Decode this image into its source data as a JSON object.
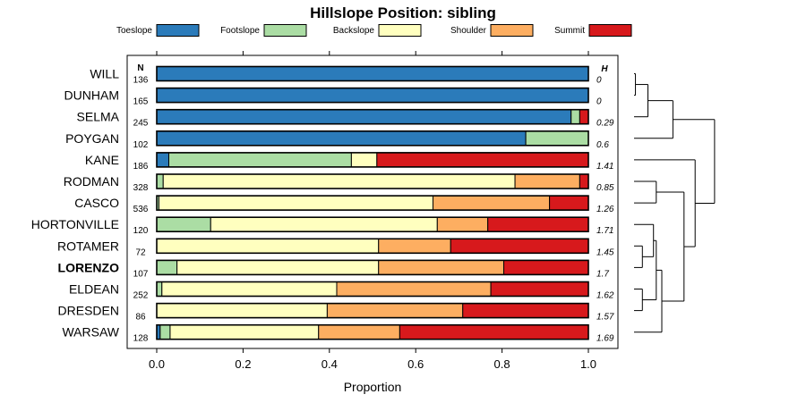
{
  "chart_data": {
    "type": "bar",
    "orientation": "horizontal",
    "stacked": true,
    "title": "Hillslope Position: sibling",
    "xlabel": "Proportion",
    "ylabel": "",
    "xlim": [
      0,
      1
    ],
    "x_ticks": [
      "0.0",
      "0.2",
      "0.4",
      "0.6",
      "0.8",
      "1.0"
    ],
    "x_tick_values": [
      0,
      0.2,
      0.4,
      0.6,
      0.8,
      1.0
    ],
    "n_header": "N",
    "h_header": "H",
    "legend": {
      "placement": "top",
      "entries": [
        {
          "label": "Toeslope",
          "color": "#2b7bba"
        },
        {
          "label": "Footslope",
          "color": "#abdda4"
        },
        {
          "label": "Backslope",
          "color": "#ffffbf"
        },
        {
          "label": "Shoulder",
          "color": "#fdae61"
        },
        {
          "label": "Summit",
          "color": "#d7191c"
        }
      ]
    },
    "rows": [
      {
        "label": "WILL",
        "bold": false,
        "n": "136",
        "h": "0",
        "values": [
          1.0,
          0,
          0,
          0,
          0
        ]
      },
      {
        "label": "DUNHAM",
        "bold": false,
        "n": "165",
        "h": "0",
        "values": [
          1.0,
          0,
          0,
          0,
          0
        ]
      },
      {
        "label": "SELMA",
        "bold": false,
        "n": "245",
        "h": "0.29",
        "values": [
          0.96,
          0.02,
          0,
          0,
          0.02
        ]
      },
      {
        "label": "POYGAN",
        "bold": false,
        "n": "102",
        "h": "0.6",
        "values": [
          0.855,
          0.145,
          0,
          0,
          0
        ]
      },
      {
        "label": "KANE",
        "bold": false,
        "n": "186",
        "h": "1.41",
        "values": [
          0.028,
          0.423,
          0.059,
          0,
          0.49
        ]
      },
      {
        "label": "RODMAN",
        "bold": false,
        "n": "328",
        "h": "0.85",
        "values": [
          0,
          0.015,
          0.815,
          0.15,
          0.02
        ]
      },
      {
        "label": "CASCO",
        "bold": false,
        "n": "536",
        "h": "1.26",
        "values": [
          0,
          0.005,
          0.635,
          0.27,
          0.09
        ]
      },
      {
        "label": "HORTONVILLE",
        "bold": false,
        "n": "120",
        "h": "1.71",
        "values": [
          0,
          0.125,
          0.525,
          0.117,
          0.233
        ]
      },
      {
        "label": "ROTAMER",
        "bold": false,
        "n": "72",
        "h": "1.45",
        "values": [
          0,
          0,
          0.514,
          0.167,
          0.319
        ]
      },
      {
        "label": "LORENZO",
        "bold": true,
        "n": "107",
        "h": "1.7",
        "values": [
          0,
          0.047,
          0.467,
          0.29,
          0.196
        ]
      },
      {
        "label": "ELDEAN",
        "bold": false,
        "n": "252",
        "h": "1.62",
        "values": [
          0,
          0.012,
          0.405,
          0.357,
          0.226
        ]
      },
      {
        "label": "DRESDEN",
        "bold": false,
        "n": "86",
        "h": "1.57",
        "values": [
          0,
          0,
          0.395,
          0.314,
          0.291
        ]
      },
      {
        "label": "WARSAW",
        "bold": false,
        "n": "128",
        "h": "1.69",
        "values": [
          0.008,
          0.023,
          0.344,
          0.188,
          0.437
        ]
      }
    ],
    "dendrogram": {
      "description": "hierarchical clustering of soil series by hillslope position",
      "merges": [
        [
          0,
          1,
          0.005
        ],
        [
          0,
          2,
          0.05
        ],
        [
          0,
          3,
          0.14
        ],
        [
          5,
          6,
          0.08
        ],
        [
          8,
          9,
          0.03
        ],
        [
          10,
          11,
          0.03
        ],
        [
          7,
          8,
          0.07
        ],
        [
          7,
          10,
          0.08
        ],
        [
          7,
          12,
          0.1
        ],
        [
          5,
          7,
          0.18
        ],
        [
          4,
          5,
          0.22
        ],
        [
          0,
          4,
          0.29
        ]
      ]
    }
  }
}
